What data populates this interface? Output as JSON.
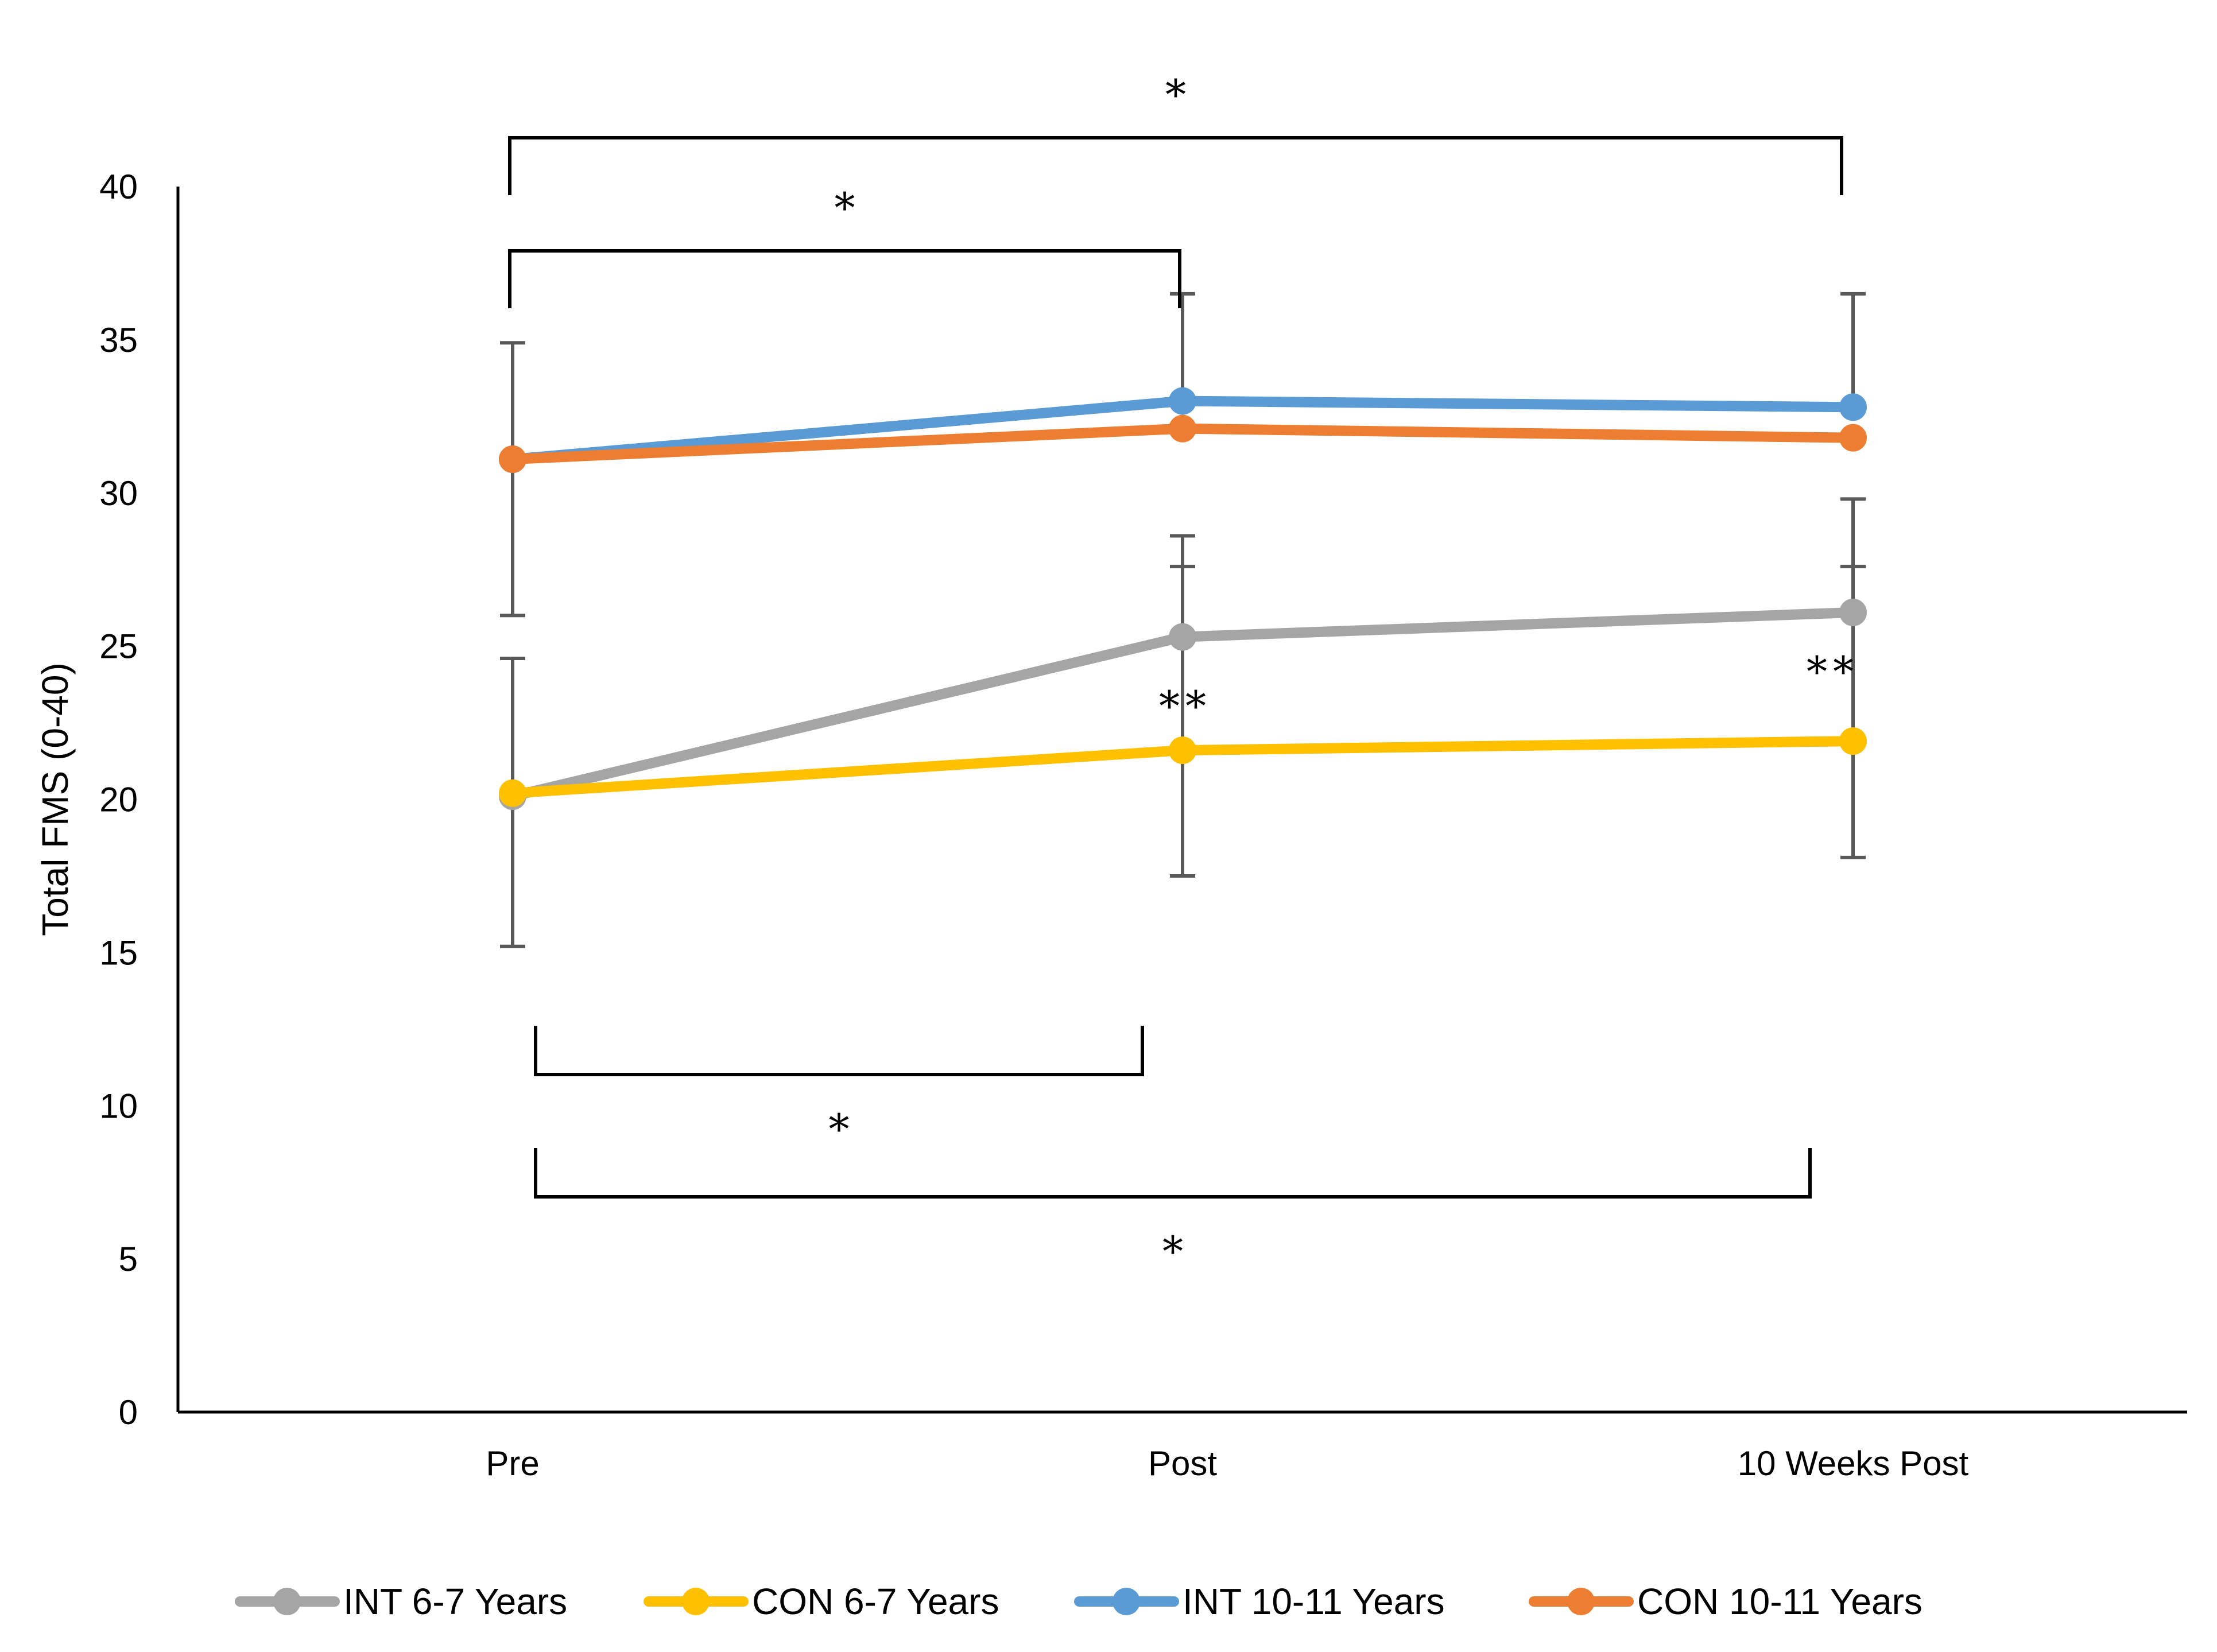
{
  "chart_data": {
    "type": "line",
    "title": "",
    "xlabel": "",
    "ylabel": "Total FMS (0-40)",
    "ylim": [
      0,
      40
    ],
    "yticks": [
      0,
      5,
      10,
      15,
      20,
      25,
      30,
      35,
      40
    ],
    "categories": [
      "Pre",
      "Post",
      "10 Weeks Post"
    ],
    "grid": false,
    "legend_position": "bottom",
    "series": [
      {
        "name": "INT 6-7 Years",
        "color": "#A5A5A5",
        "values": [
          20.1,
          25.3,
          26.1
        ],
        "error_upper": [
          24.6,
          28.6,
          29.8
        ],
        "error_lower": [
          15.2,
          null,
          null
        ]
      },
      {
        "name": "CON 6-7 Years",
        "color": "#FFC000",
        "values": [
          20.2,
          21.6,
          21.9
        ],
        "error_upper": [
          null,
          27.6,
          27.6
        ],
        "error_lower": [
          null,
          17.5,
          18.1
        ]
      },
      {
        "name": "INT 10-11 Years",
        "color": "#5B9BD5",
        "values": [
          31.1,
          33.0,
          32.8
        ],
        "error_upper": [
          34.9,
          36.5,
          36.5
        ],
        "error_lower": [
          26.0,
          null,
          null
        ]
      },
      {
        "name": "CON 10-11 Years",
        "color": "#ED7D31",
        "values": [
          31.1,
          32.1,
          31.8
        ],
        "error_upper": [
          null,
          null,
          null
        ],
        "error_lower": [
          null,
          null,
          null
        ]
      }
    ],
    "annotations": {
      "brackets": [
        {
          "name": "bracket-pre-10weeks-top",
          "label": "*",
          "from_category": 0,
          "to_category": 2,
          "side": "top",
          "level": 1
        },
        {
          "name": "bracket-pre-post-top",
          "label": "*",
          "from_category": 0,
          "to_category": 1,
          "side": "top",
          "level": 2
        },
        {
          "name": "bracket-pre-post-bottom",
          "label": "*",
          "from_category": 0,
          "to_category": 1,
          "side": "bottom",
          "level": 1
        },
        {
          "name": "bracket-pre-10weeks-bottom",
          "label": "*",
          "from_category": 0,
          "to_category": 2,
          "side": "bottom",
          "level": 2
        }
      ],
      "markers": [
        {
          "name": "marker-post-double",
          "label": "**",
          "category": 1
        },
        {
          "name": "marker-10weeks-double",
          "label": "**",
          "category": 2
        }
      ]
    }
  }
}
